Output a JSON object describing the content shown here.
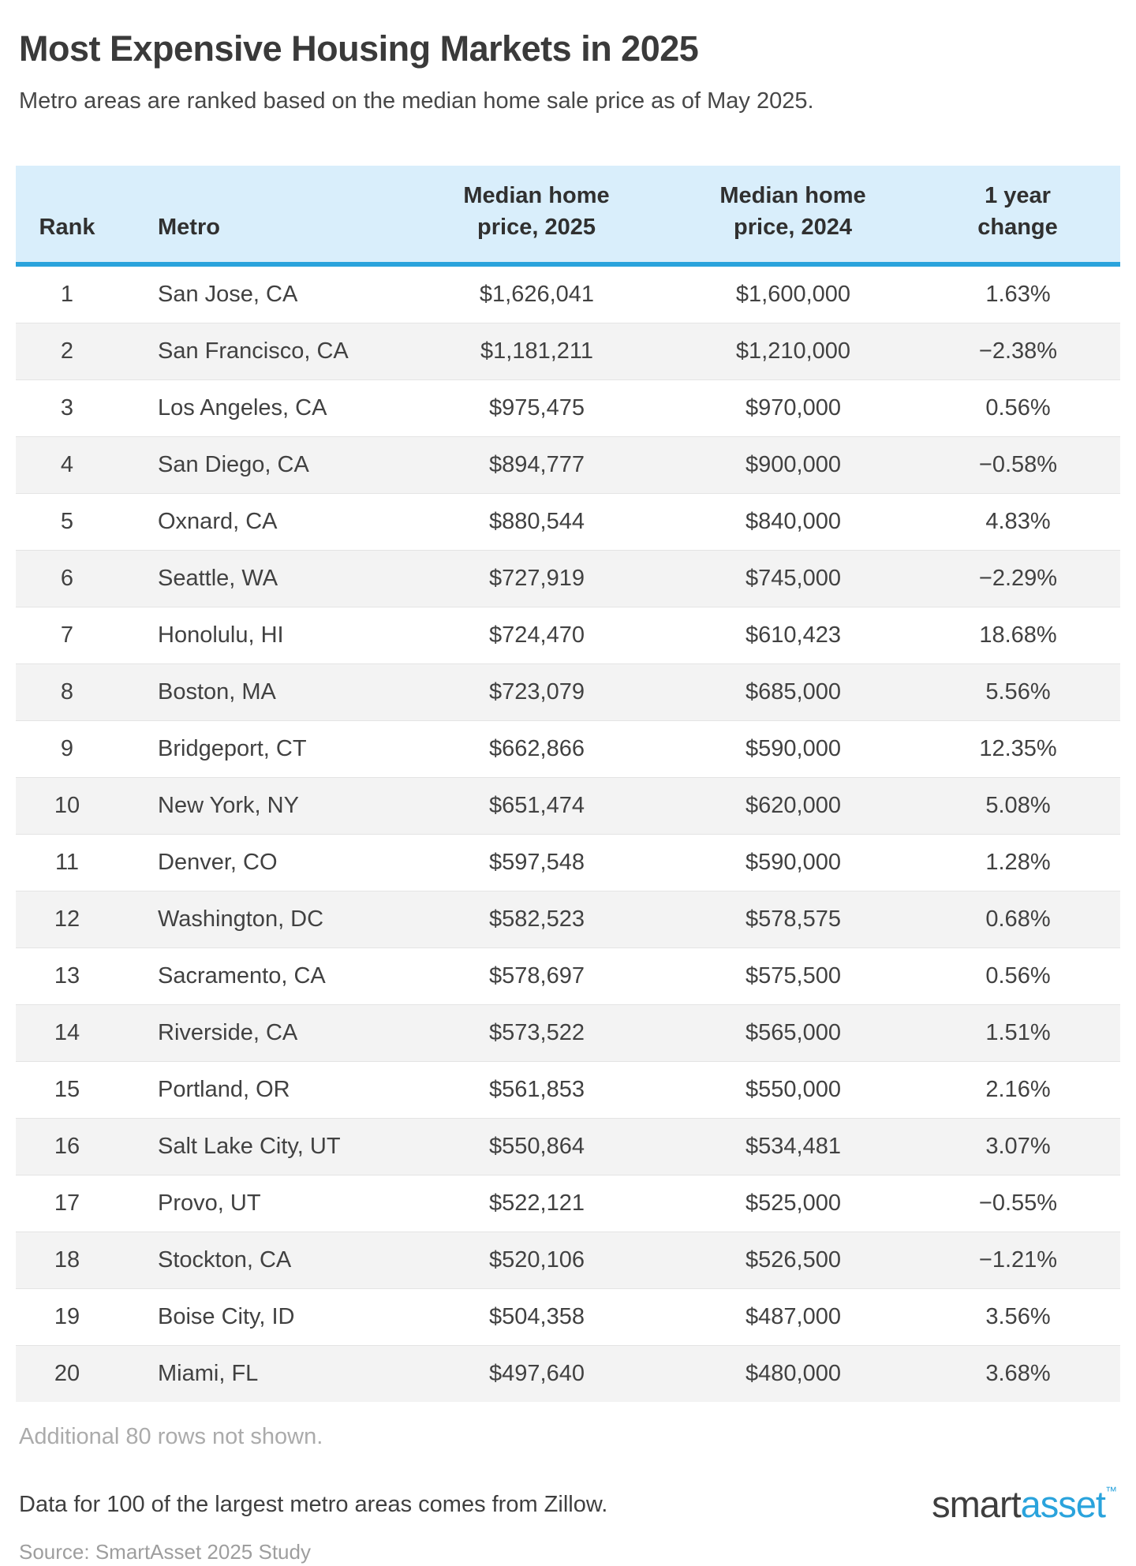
{
  "title": "Most Expensive Housing Markets in 2025",
  "subtitle": "Metro areas are ranked based on the median home sale price as of May 2025.",
  "chart_data": {
    "type": "table",
    "columns": [
      "Rank",
      "Metro",
      "Median home\nprice, 2025",
      "Median home\nprice, 2024",
      "1 year\nchange"
    ],
    "rows": [
      {
        "rank": "1",
        "metro": "San Jose, CA",
        "price_2025": "$1,626,041",
        "price_2024": "$1,600,000",
        "change": "1.63%"
      },
      {
        "rank": "2",
        "metro": "San Francisco, CA",
        "price_2025": "$1,181,211",
        "price_2024": "$1,210,000",
        "change": "−2.38%"
      },
      {
        "rank": "3",
        "metro": "Los Angeles, CA",
        "price_2025": "$975,475",
        "price_2024": "$970,000",
        "change": "0.56%"
      },
      {
        "rank": "4",
        "metro": "San Diego, CA",
        "price_2025": "$894,777",
        "price_2024": "$900,000",
        "change": "−0.58%"
      },
      {
        "rank": "5",
        "metro": "Oxnard, CA",
        "price_2025": "$880,544",
        "price_2024": "$840,000",
        "change": "4.83%"
      },
      {
        "rank": "6",
        "metro": "Seattle, WA",
        "price_2025": "$727,919",
        "price_2024": "$745,000",
        "change": "−2.29%"
      },
      {
        "rank": "7",
        "metro": "Honolulu, HI",
        "price_2025": "$724,470",
        "price_2024": "$610,423",
        "change": "18.68%"
      },
      {
        "rank": "8",
        "metro": "Boston, MA",
        "price_2025": "$723,079",
        "price_2024": "$685,000",
        "change": "5.56%"
      },
      {
        "rank": "9",
        "metro": "Bridgeport, CT",
        "price_2025": "$662,866",
        "price_2024": "$590,000",
        "change": "12.35%"
      },
      {
        "rank": "10",
        "metro": "New York, NY",
        "price_2025": "$651,474",
        "price_2024": "$620,000",
        "change": "5.08%"
      },
      {
        "rank": "11",
        "metro": "Denver, CO",
        "price_2025": "$597,548",
        "price_2024": "$590,000",
        "change": "1.28%"
      },
      {
        "rank": "12",
        "metro": "Washington, DC",
        "price_2025": "$582,523",
        "price_2024": "$578,575",
        "change": "0.68%"
      },
      {
        "rank": "13",
        "metro": "Sacramento, CA",
        "price_2025": "$578,697",
        "price_2024": "$575,500",
        "change": "0.56%"
      },
      {
        "rank": "14",
        "metro": "Riverside, CA",
        "price_2025": "$573,522",
        "price_2024": "$565,000",
        "change": "1.51%"
      },
      {
        "rank": "15",
        "metro": "Portland, OR",
        "price_2025": "$561,853",
        "price_2024": "$550,000",
        "change": "2.16%"
      },
      {
        "rank": "16",
        "metro": "Salt Lake City, UT",
        "price_2025": "$550,864",
        "price_2024": "$534,481",
        "change": "3.07%"
      },
      {
        "rank": "17",
        "metro": "Provo, UT",
        "price_2025": "$522,121",
        "price_2024": "$525,000",
        "change": "−0.55%"
      },
      {
        "rank": "18",
        "metro": "Stockton, CA",
        "price_2025": "$520,106",
        "price_2024": "$526,500",
        "change": "−1.21%"
      },
      {
        "rank": "19",
        "metro": "Boise City, ID",
        "price_2025": "$504,358",
        "price_2024": "$487,000",
        "change": "3.56%"
      },
      {
        "rank": "20",
        "metro": "Miami, FL",
        "price_2025": "$497,640",
        "price_2024": "$480,000",
        "change": "3.68%"
      }
    ]
  },
  "footer": {
    "additional_rows_note": "Additional 80 rows not shown.",
    "data_source_note": "Data for 100 of the largest metro areas comes from Zillow.",
    "source_line": "Source: SmartAsset 2025 Study"
  },
  "logo": {
    "part1": "smart",
    "part2": "asset",
    "tm": "™"
  },
  "colors": {
    "accent_blue": "#2aa3dc",
    "header_bg": "#d9eefb",
    "row_stripe": "#f3f3f3"
  }
}
